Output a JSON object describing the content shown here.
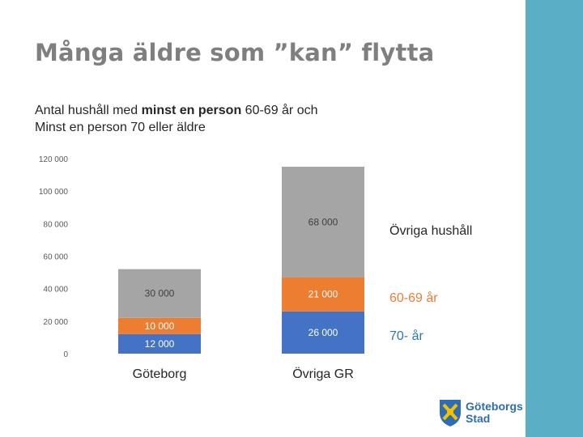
{
  "slide": {
    "title": "Många äldre som ”kan” flytta",
    "subtitle_line1_pre": "Antal hushåll med ",
    "subtitle_line1_bold": "minst en person",
    "subtitle_line1_post": " 60-69 år och",
    "subtitle_line2": "Minst en person 70 eller äldre",
    "logo_line1": "Göteborgs",
    "logo_line2": "Stad"
  },
  "colors": {
    "band": "#5aafc7",
    "series_70": "#4472c4",
    "series_6069": "#ed7d31",
    "series_ovriga": "#a5a5a5"
  },
  "chart_data": {
    "type": "bar",
    "stacked": true,
    "categories": [
      "Göteborg",
      "Övriga GR"
    ],
    "series": [
      {
        "name": "70- år",
        "values": [
          12000,
          26000
        ],
        "labels": [
          "12 000",
          "26 000"
        ],
        "color": "#4472c4"
      },
      {
        "name": "60-69 år",
        "values": [
          10000,
          21000
        ],
        "labels": [
          "10 000",
          "21 000"
        ],
        "color": "#ed7d31"
      },
      {
        "name": "Övriga hushåll",
        "values": [
          30000,
          68000
        ],
        "labels": [
          "30 000",
          "68 000"
        ],
        "color": "#a5a5a5"
      }
    ],
    "ylim": [
      0,
      120000
    ],
    "yticks": [
      0,
      20000,
      40000,
      60000,
      80000,
      100000,
      120000
    ],
    "ytick_labels": [
      "0",
      "20 000",
      "40 000",
      "60 000",
      "80 000",
      "100 000",
      "120 000"
    ],
    "grid": false,
    "legend": "right",
    "title": "",
    "xlabel": "",
    "ylabel": ""
  }
}
